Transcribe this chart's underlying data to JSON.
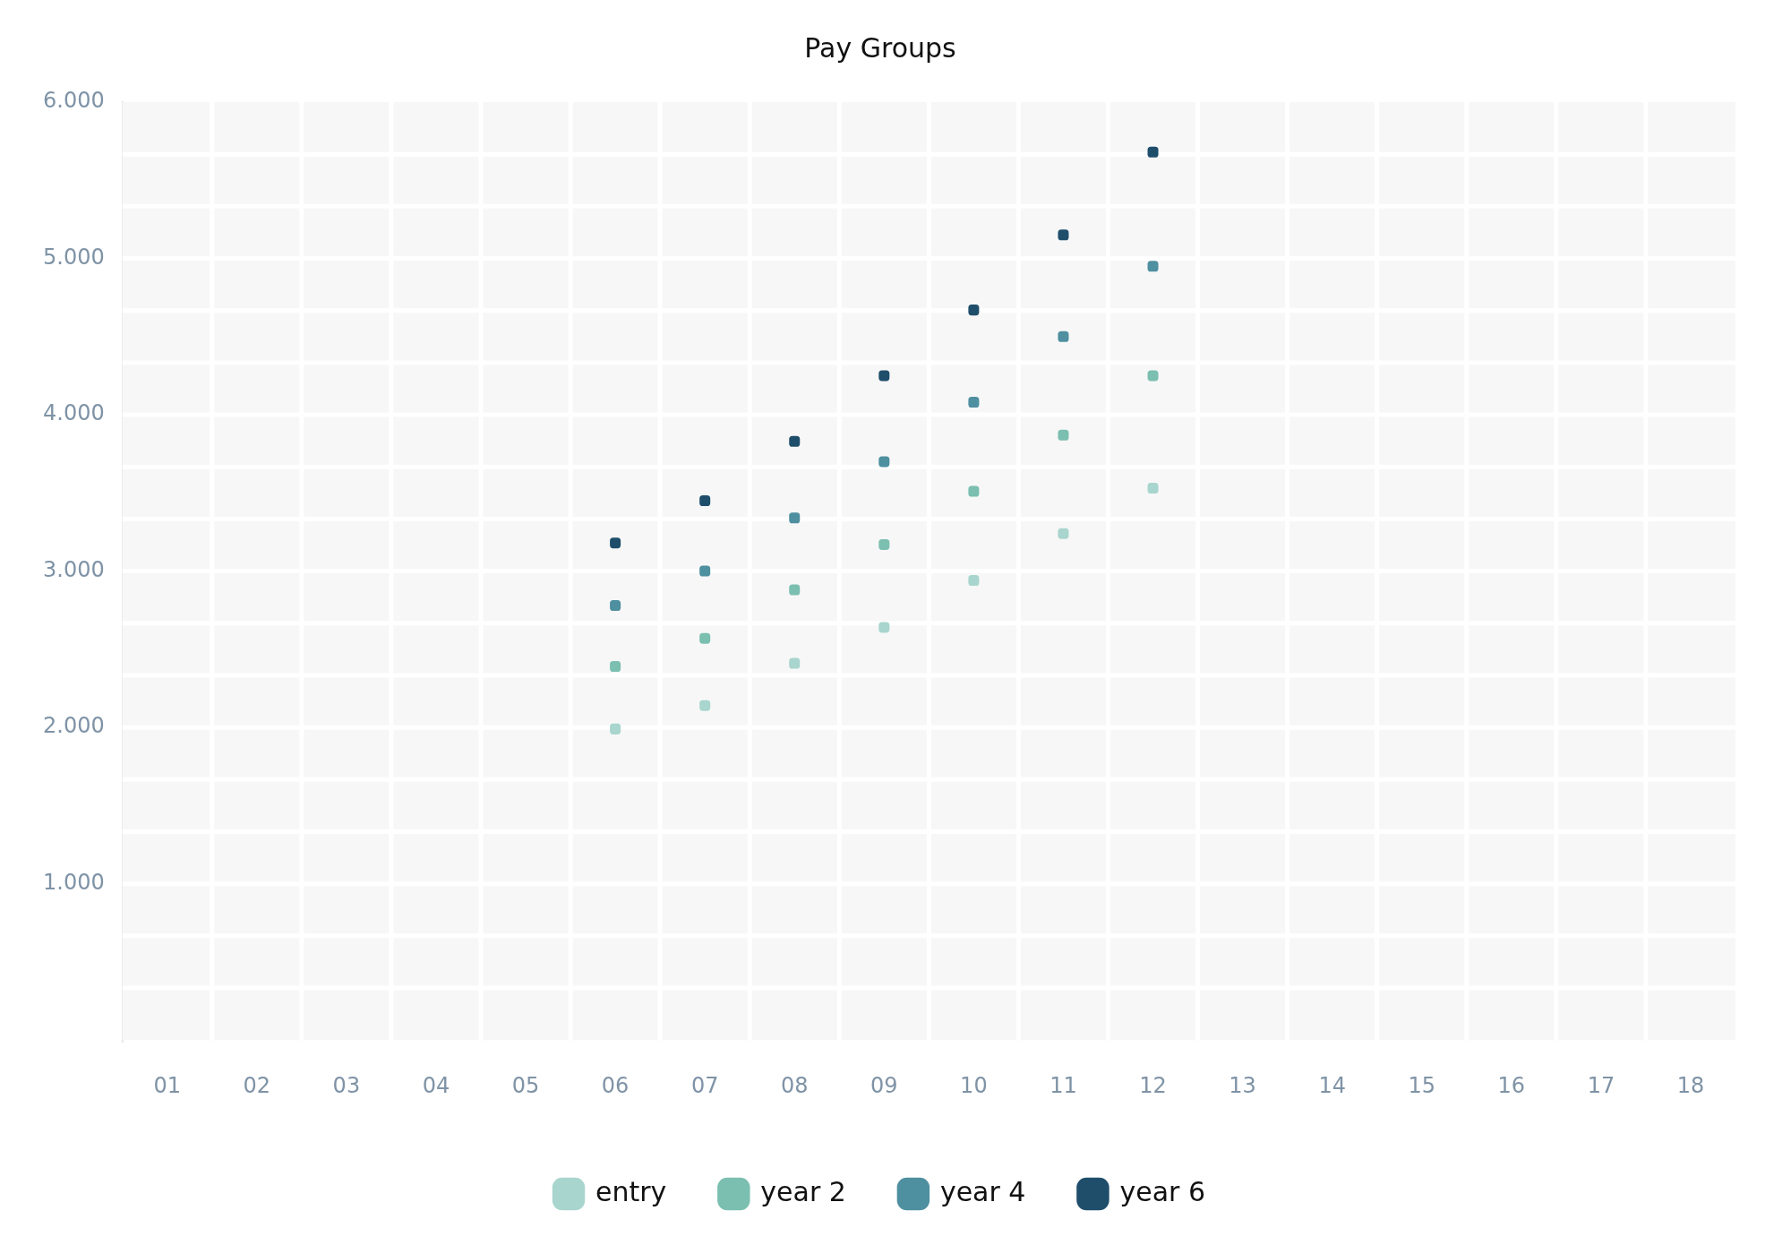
{
  "chart_data": {
    "type": "scatter",
    "title": "Pay Groups",
    "categories": [
      "01",
      "02",
      "03",
      "04",
      "05",
      "06",
      "07",
      "08",
      "09",
      "10",
      "11",
      "12",
      "13",
      "14",
      "15",
      "16",
      "17",
      "18"
    ],
    "ylim": [
      0,
      6000
    ],
    "yticks": [
      {
        "value": 1000,
        "label": "1.000"
      },
      {
        "value": 2000,
        "label": "2.000"
      },
      {
        "value": 3000,
        "label": "3.000"
      },
      {
        "value": 4000,
        "label": "4.000"
      },
      {
        "value": 5000,
        "label": "5.000"
      },
      {
        "value": 6000,
        "label": "6.000"
      }
    ],
    "grid": true,
    "legend": "bottom",
    "series": [
      {
        "name": "entry",
        "color": "#a8d5cd",
        "x": [
          "06",
          "07",
          "08",
          "09",
          "10",
          "11",
          "12"
        ],
        "values": [
          1990,
          2140,
          2410,
          2640,
          2940,
          3240,
          3530
        ]
      },
      {
        "name": "year 2",
        "color": "#7bbfb0",
        "x": [
          "06",
          "07",
          "08",
          "09",
          "10",
          "11",
          "12"
        ],
        "values": [
          2390,
          2570,
          2880,
          3170,
          3510,
          3870,
          4250
        ]
      },
      {
        "name": "year 4",
        "color": "#4e8fa0",
        "x": [
          "06",
          "07",
          "08",
          "09",
          "10",
          "11",
          "12"
        ],
        "values": [
          2780,
          3000,
          3340,
          3700,
          4080,
          4500,
          4950
        ]
      },
      {
        "name": "year 6",
        "color": "#1f4e6b",
        "x": [
          "06",
          "07",
          "08",
          "09",
          "10",
          "11",
          "12"
        ],
        "values": [
          3180,
          3450,
          3830,
          4250,
          4670,
          5150,
          5680
        ]
      }
    ]
  }
}
